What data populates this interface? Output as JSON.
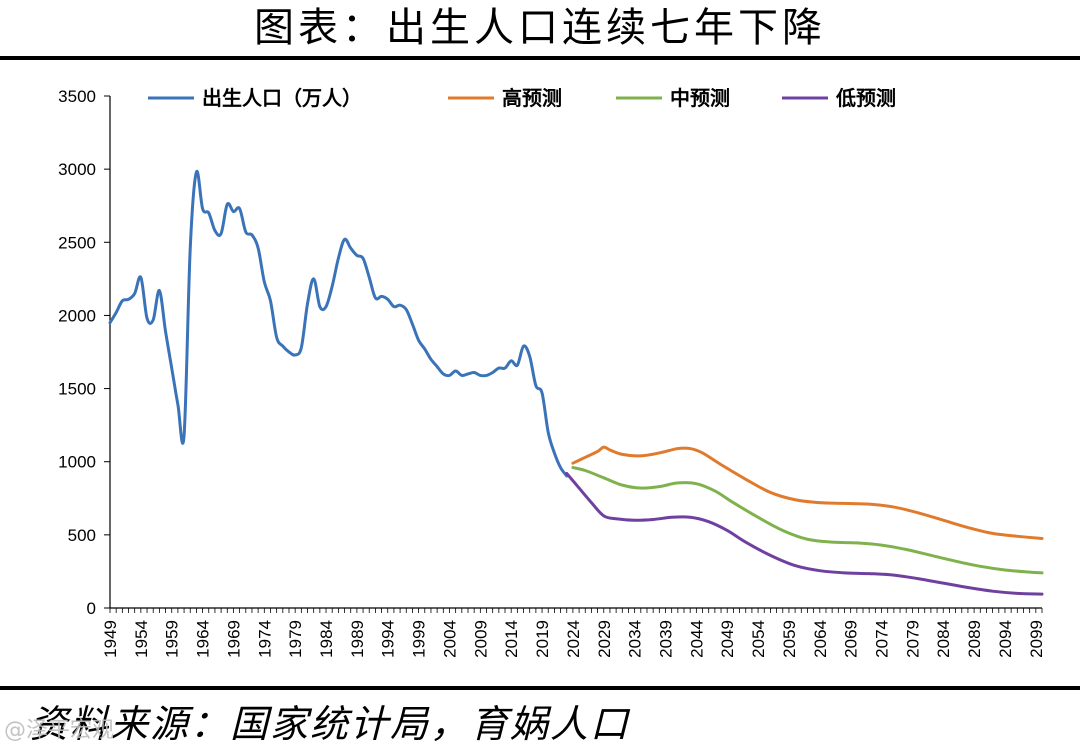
{
  "title": "图表：出生人口连续七年下降",
  "source": "资料来源：国家统计局，育娲人口",
  "watermark": "@泽平宏观",
  "colors": {
    "births": "#3a73b8",
    "high": "#e07a2c",
    "mid": "#7fb24d",
    "low": "#7040a0"
  },
  "chart_data": {
    "type": "line",
    "ylim": [
      0,
      3500
    ],
    "yticks": [
      0,
      500,
      1000,
      1500,
      2000,
      2500,
      3000,
      3500
    ],
    "xlim": [
      1949,
      2100
    ],
    "xticks": [
      "1949",
      "1954",
      "1959",
      "1964",
      "1969",
      "1974",
      "1979",
      "1984",
      "1989",
      "1994",
      "1999",
      "2004",
      "2009",
      "2014",
      "2019",
      "2024",
      "2029",
      "2034",
      "2039",
      "2044",
      "2049",
      "2054",
      "2059",
      "2064",
      "2069",
      "2074",
      "2079",
      "2084",
      "2089",
      "2094",
      "2099"
    ],
    "legend_position": "top",
    "series": [
      {
        "name": "出生人口（万人）",
        "color_key": "births",
        "points": [
          [
            1949,
            1950
          ],
          [
            1950,
            2020
          ],
          [
            1951,
            2100
          ],
          [
            1952,
            2110
          ],
          [
            1953,
            2150
          ],
          [
            1954,
            2260
          ],
          [
            1955,
            1980
          ],
          [
            1956,
            1970
          ],
          [
            1957,
            2170
          ],
          [
            1958,
            1890
          ],
          [
            1959,
            1640
          ],
          [
            1960,
            1390
          ],
          [
            1961,
            1180
          ],
          [
            1962,
            2460
          ],
          [
            1963,
            2980
          ],
          [
            1964,
            2730
          ],
          [
            1965,
            2700
          ],
          [
            1966,
            2580
          ],
          [
            1967,
            2560
          ],
          [
            1968,
            2760
          ],
          [
            1969,
            2710
          ],
          [
            1970,
            2730
          ],
          [
            1971,
            2570
          ],
          [
            1972,
            2550
          ],
          [
            1973,
            2460
          ],
          [
            1974,
            2230
          ],
          [
            1975,
            2100
          ],
          [
            1976,
            1850
          ],
          [
            1977,
            1790
          ],
          [
            1978,
            1750
          ],
          [
            1979,
            1730
          ],
          [
            1980,
            1780
          ],
          [
            1981,
            2080
          ],
          [
            1982,
            2250
          ],
          [
            1983,
            2060
          ],
          [
            1984,
            2060
          ],
          [
            1985,
            2200
          ],
          [
            1986,
            2390
          ],
          [
            1987,
            2520
          ],
          [
            1988,
            2460
          ],
          [
            1989,
            2410
          ],
          [
            1990,
            2390
          ],
          [
            1991,
            2260
          ],
          [
            1992,
            2120
          ],
          [
            1993,
            2130
          ],
          [
            1994,
            2110
          ],
          [
            1995,
            2060
          ],
          [
            1996,
            2070
          ],
          [
            1997,
            2040
          ],
          [
            1998,
            1940
          ],
          [
            1999,
            1830
          ],
          [
            2000,
            1770
          ],
          [
            2001,
            1700
          ],
          [
            2002,
            1650
          ],
          [
            2003,
            1600
          ],
          [
            2004,
            1590
          ],
          [
            2005,
            1620
          ],
          [
            2006,
            1590
          ],
          [
            2007,
            1600
          ],
          [
            2008,
            1610
          ],
          [
            2009,
            1590
          ],
          [
            2010,
            1590
          ],
          [
            2011,
            1610
          ],
          [
            2012,
            1640
          ],
          [
            2013,
            1640
          ],
          [
            2014,
            1690
          ],
          [
            2015,
            1660
          ],
          [
            2016,
            1790
          ],
          [
            2017,
            1720
          ],
          [
            2018,
            1520
          ],
          [
            2019,
            1470
          ],
          [
            2020,
            1200
          ],
          [
            2021,
            1060
          ],
          [
            2022,
            960
          ],
          [
            2023,
            902
          ]
        ]
      },
      {
        "name": "高预测",
        "color_key": "high",
        "points": [
          [
            2024,
            990
          ],
          [
            2026,
            1030
          ],
          [
            2028,
            1070
          ],
          [
            2029,
            1100
          ],
          [
            2030,
            1080
          ],
          [
            2032,
            1050
          ],
          [
            2035,
            1040
          ],
          [
            2038,
            1060
          ],
          [
            2041,
            1090
          ],
          [
            2043,
            1090
          ],
          [
            2045,
            1060
          ],
          [
            2048,
            980
          ],
          [
            2052,
            880
          ],
          [
            2056,
            790
          ],
          [
            2060,
            740
          ],
          [
            2064,
            720
          ],
          [
            2068,
            715
          ],
          [
            2072,
            710
          ],
          [
            2076,
            690
          ],
          [
            2080,
            650
          ],
          [
            2084,
            600
          ],
          [
            2088,
            550
          ],
          [
            2092,
            510
          ],
          [
            2096,
            490
          ],
          [
            2100,
            475
          ]
        ]
      },
      {
        "name": "中预测",
        "color_key": "mid",
        "points": [
          [
            2024,
            960
          ],
          [
            2026,
            940
          ],
          [
            2029,
            890
          ],
          [
            2032,
            840
          ],
          [
            2035,
            820
          ],
          [
            2038,
            830
          ],
          [
            2041,
            855
          ],
          [
            2044,
            850
          ],
          [
            2047,
            800
          ],
          [
            2050,
            720
          ],
          [
            2054,
            620
          ],
          [
            2058,
            530
          ],
          [
            2062,
            470
          ],
          [
            2066,
            450
          ],
          [
            2070,
            445
          ],
          [
            2074,
            430
          ],
          [
            2078,
            400
          ],
          [
            2082,
            360
          ],
          [
            2086,
            320
          ],
          [
            2090,
            285
          ],
          [
            2094,
            260
          ],
          [
            2098,
            245
          ],
          [
            2100,
            240
          ]
        ]
      },
      {
        "name": "低预测",
        "color_key": "low",
        "points": [
          [
            2023,
            920
          ],
          [
            2025,
            820
          ],
          [
            2027,
            720
          ],
          [
            2029,
            630
          ],
          [
            2031,
            610
          ],
          [
            2034,
            600
          ],
          [
            2037,
            605
          ],
          [
            2040,
            620
          ],
          [
            2043,
            620
          ],
          [
            2046,
            590
          ],
          [
            2049,
            530
          ],
          [
            2052,
            450
          ],
          [
            2056,
            360
          ],
          [
            2060,
            290
          ],
          [
            2064,
            255
          ],
          [
            2068,
            240
          ],
          [
            2072,
            235
          ],
          [
            2076,
            225
          ],
          [
            2080,
            200
          ],
          [
            2084,
            170
          ],
          [
            2088,
            140
          ],
          [
            2092,
            115
          ],
          [
            2096,
            100
          ],
          [
            2100,
            95
          ]
        ]
      }
    ]
  }
}
